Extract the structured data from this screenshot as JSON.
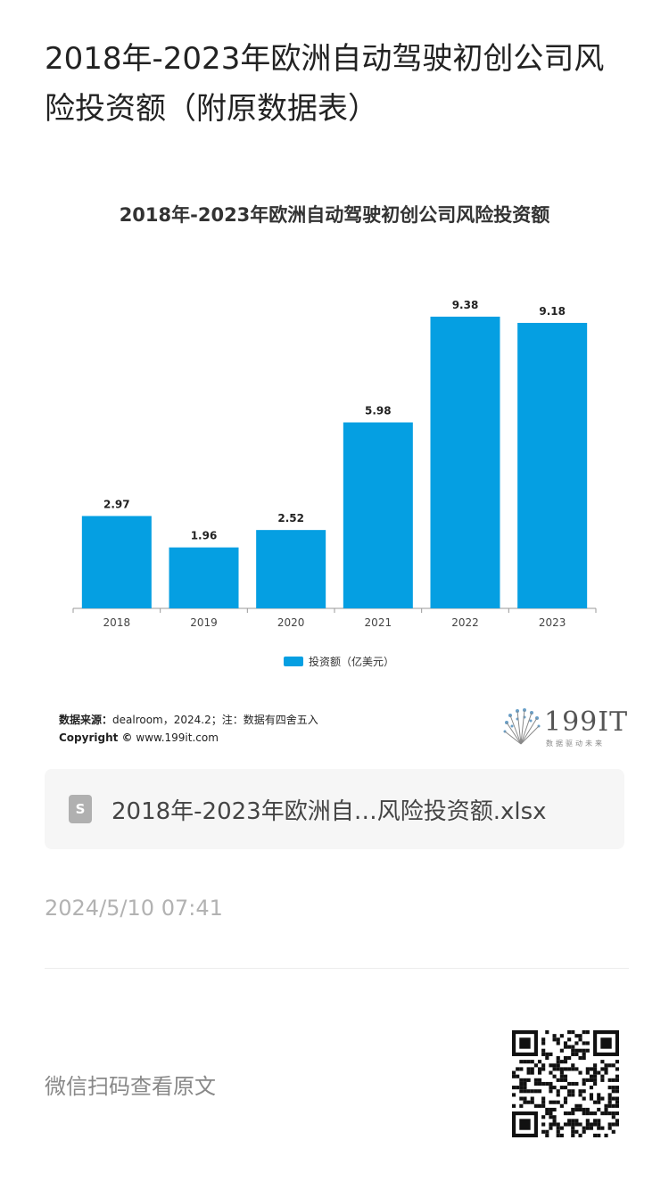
{
  "page": {
    "title": "2018年-2023年欧洲自动驾驶初创公司风险投资额（附原数据表）"
  },
  "chart_data": {
    "type": "bar",
    "title": "2018年-2023年欧洲自动驾驶初创公司风险投资额",
    "categories": [
      "2018",
      "2019",
      "2020",
      "2021",
      "2022",
      "2023"
    ],
    "series": [
      {
        "name": "投资额（亿美元）",
        "values": [
          2.97,
          1.96,
          2.52,
          5.98,
          9.38,
          9.18
        ]
      }
    ],
    "data_labels": [
      "2.97",
      "1.96",
      "2.52",
      "5.98",
      "9.38",
      "9.18"
    ],
    "ylim": [
      0,
      9.38
    ],
    "grid": false,
    "legend": "bottom-center",
    "bar_color": "#059fe2"
  },
  "source": {
    "label": "数据来源：",
    "text": "dealroom，2024.2；注：数据有四舍五入",
    "copyright_label": "Copyright ©",
    "copyright_text": "www.199it.com"
  },
  "brand": {
    "name": "199IT",
    "tagline": "数据驱动未来"
  },
  "file": {
    "icon": "spreadsheet-icon",
    "icon_letter": "S",
    "name": "2018年-2023年欧洲自…风险投资额.xlsx"
  },
  "meta": {
    "timestamp": "2024/5/10 07:41",
    "qr_caption": "微信扫码查看原文"
  }
}
